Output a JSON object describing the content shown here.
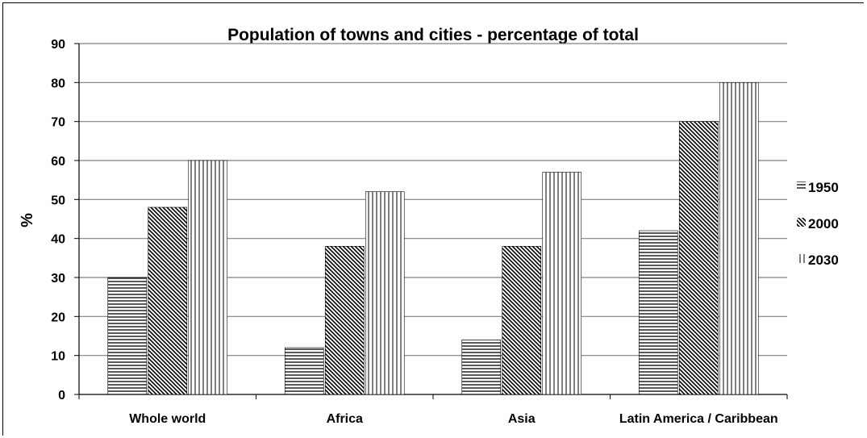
{
  "chart_data": {
    "type": "bar",
    "title": "Population of towns and cities - percentage of total",
    "ylabel": "%",
    "xlabel": "",
    "ylim": [
      0,
      90
    ],
    "yticks": [
      0,
      10,
      20,
      30,
      40,
      50,
      60,
      70,
      80,
      90
    ],
    "grid": true,
    "legend_position": "right",
    "categories": [
      "Whole world",
      "Africa",
      "Asia",
      "Latin America / Caribbean"
    ],
    "series": [
      {
        "name": "1950",
        "pattern": "horizontal-lines",
        "values": [
          30,
          12,
          14,
          42
        ]
      },
      {
        "name": "2000",
        "pattern": "diagonal-hatch",
        "values": [
          48,
          38,
          38,
          70
        ]
      },
      {
        "name": "2030",
        "pattern": "vertical-lines",
        "values": [
          60,
          52,
          57,
          80
        ]
      }
    ],
    "colors": {
      "stroke": "#000000",
      "grid": "#808080",
      "background": "#ffffff"
    }
  }
}
